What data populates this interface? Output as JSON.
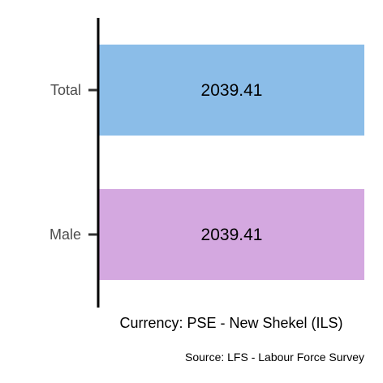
{
  "chart_data": {
    "type": "bar",
    "orientation": "horizontal",
    "categories": [
      "Total",
      "Male"
    ],
    "values": [
      2039.41,
      2039.41
    ],
    "data_labels": [
      "2039.41",
      "2039.41"
    ],
    "colors": [
      "#8bbde8",
      "#d4a8e0"
    ],
    "xlabel": "Currency: PSE - New Shekel (ILS)",
    "caption": "Source:  LFS - Labour Force Survey",
    "xlim": [
      0,
      2039.41
    ],
    "grid": false,
    "legend": "none"
  }
}
